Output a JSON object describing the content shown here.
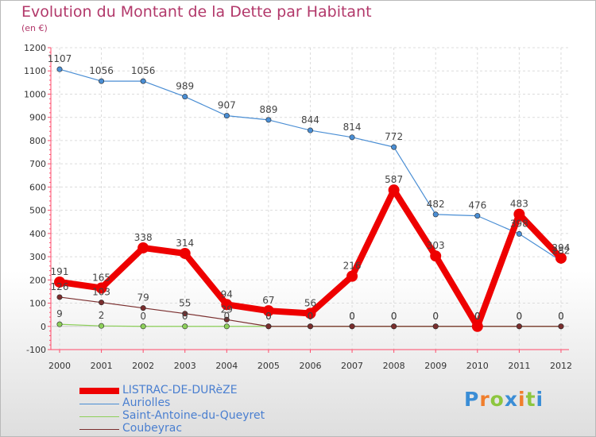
{
  "title": "Evolution du Montant de la Dette par Habitant",
  "subtitle": "(en €)",
  "logo": {
    "letters": [
      {
        "ch": "P",
        "color": "#3a8dd6"
      },
      {
        "ch": "r",
        "color": "#f07e2c"
      },
      {
        "ch": "o",
        "color": "#8dc63f"
      },
      {
        "ch": "x",
        "color": "#3a8dd6"
      },
      {
        "ch": "i",
        "color": "#f07e2c"
      },
      {
        "ch": "t",
        "color": "#8dc63f"
      },
      {
        "ch": "i",
        "color": "#3a8dd6"
      }
    ]
  },
  "chart_data": {
    "type": "line",
    "title": "Evolution du Montant de la Dette par Habitant",
    "subtitle": "(en €)",
    "xlabel": "",
    "ylabel": "",
    "x": [
      "2000",
      "2001",
      "2002",
      "2003",
      "2004",
      "2005",
      "2006",
      "2007",
      "2008",
      "2009",
      "2010",
      "2011",
      "2012"
    ],
    "ylim": [
      -100,
      1200
    ],
    "yticks": [
      -100,
      0,
      100,
      200,
      300,
      400,
      500,
      600,
      700,
      800,
      900,
      1000,
      1100,
      1200
    ],
    "grid": true,
    "legend_position": "bottom-left",
    "series": [
      {
        "name": "LISTRAC-DE-DURèZE",
        "color": "#ee0000",
        "highlight": true,
        "values": [
          191,
          165,
          338,
          314,
          94,
          67,
          56,
          216,
          587,
          303,
          0,
          483,
          294
        ]
      },
      {
        "name": "Auriolles",
        "color": "#4a8ed4",
        "highlight": false,
        "values": [
          1107,
          1056,
          1056,
          989,
          907,
          889,
          844,
          814,
          772,
          482,
          476,
          398,
          282
        ]
      },
      {
        "name": "Saint-Antoine-du-Queyret",
        "color": "#8dd05a",
        "highlight": false,
        "values": [
          9,
          2,
          0,
          0,
          0,
          0,
          0,
          0,
          0,
          0,
          0,
          0,
          0
        ]
      },
      {
        "name": "Coubeyrac",
        "color": "#7a2e2e",
        "highlight": false,
        "values": [
          126,
          103,
          79,
          55,
          29,
          0,
          0,
          0,
          0,
          0,
          0,
          0,
          0
        ]
      }
    ]
  }
}
